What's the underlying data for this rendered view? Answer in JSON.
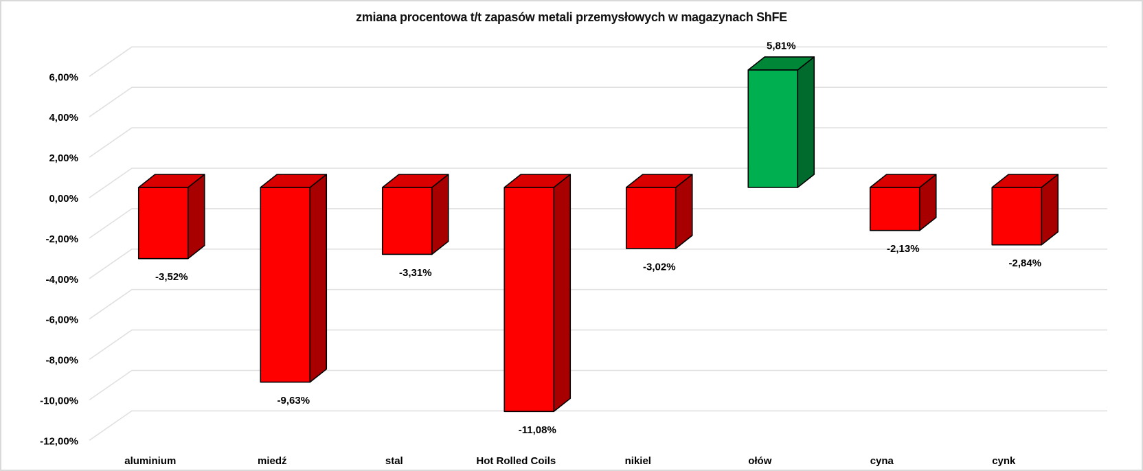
{
  "chart_data": {
    "type": "bar",
    "style": "3d-column",
    "title": "zmiana procentowa t/t zapasów metali przemysłowych w magazynach ShFE",
    "xlabel": "",
    "ylabel": "",
    "categories": [
      "aluminium",
      "miedź",
      "stal",
      "Hot Rolled Coils",
      "nikiel",
      "ołów",
      "cyna",
      "cynk"
    ],
    "values": [
      -3.52,
      -9.63,
      -3.31,
      -11.08,
      -3.02,
      5.81,
      -2.13,
      -2.84
    ],
    "data_labels": [
      "-3,52%",
      "-9,63%",
      "-3,31%",
      "-11,08%",
      "-3,02%",
      "5,81%",
      "-2,13%",
      "-2,84%"
    ],
    "ylim": [
      -12,
      6
    ],
    "ytick_step": 2,
    "yticks": [
      {
        "value": 6,
        "label": "6,00%"
      },
      {
        "value": 4,
        "label": "4,00%"
      },
      {
        "value": 2,
        "label": "2,00%"
      },
      {
        "value": 0,
        "label": "0,00%"
      },
      {
        "value": -2,
        "label": "-2,00%"
      },
      {
        "value": -4,
        "label": "-4,00%"
      },
      {
        "value": -6,
        "label": "-6,00%"
      },
      {
        "value": -8,
        "label": "-8,00%"
      },
      {
        "value": -10,
        "label": "-10,00%"
      },
      {
        "value": -12,
        "label": "-12,00%"
      }
    ],
    "grid": true,
    "legend": false,
    "number_format": "0,00%",
    "colors": {
      "negative_front": "#fe0000",
      "negative_top": "#da0000",
      "negative_side": "#a80000",
      "positive_front": "#00b050",
      "positive_top": "#008637",
      "positive_side": "#006b2c",
      "gridline": "#e0e0e0",
      "outline": "#000000",
      "text": "#000000",
      "frame_border": "#d9d9d9"
    }
  }
}
